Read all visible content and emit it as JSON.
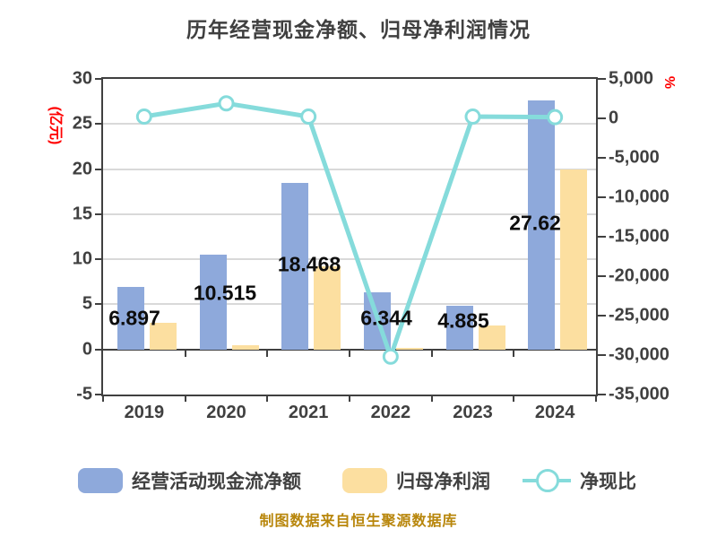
{
  "title": "历年经营现金净额、归母净利润情况",
  "caption": "制图数据来自恒生聚源数据库",
  "colors": {
    "bar_cash": "#8EA9DB",
    "bar_profit": "#FCDFA0",
    "line_ratio": "#85DBDB",
    "axis_unit_red": "#FF0000",
    "text": "#404040",
    "grid": "#D9D9D9",
    "caption": "#B8860B"
  },
  "axes": {
    "left": {
      "unit": "(亿元)",
      "tick_labels": [
        "30",
        "25",
        "20",
        "15",
        "10",
        "5",
        "0",
        "-5"
      ],
      "tick_values": [
        30,
        25,
        20,
        15,
        10,
        5,
        0,
        -5
      ],
      "range": [
        -5,
        30
      ]
    },
    "right": {
      "unit": "%",
      "tick_labels": [
        "5,000",
        "0",
        "-5,000",
        "-10,000",
        "-15,000",
        "-20,000",
        "-25,000",
        "-30,000",
        "-35,000"
      ],
      "tick_values": [
        5000,
        0,
        -5000,
        -10000,
        -15000,
        -20000,
        -25000,
        -30000,
        -35000
      ],
      "range": [
        -35000,
        5000
      ]
    }
  },
  "legend": {
    "items": [
      {
        "label": "经营活动现金流净额",
        "type": "bar",
        "color": "#8EA9DB"
      },
      {
        "label": "归母净利润",
        "type": "bar",
        "color": "#FCDFA0"
      },
      {
        "label": "净现比",
        "type": "line",
        "color": "#85DBDB"
      }
    ]
  },
  "chart_data": {
    "type": "bar",
    "title": "历年经营现金净额、归母净利润情况",
    "categories": [
      "2019",
      "2020",
      "2021",
      "2022",
      "2023",
      "2024"
    ],
    "left_axis": {
      "label": "(亿元)",
      "ylim": [
        -5,
        30
      ],
      "grid": true
    },
    "right_axis": {
      "label": "%",
      "ylim": [
        -35000,
        5000
      ]
    },
    "legend_position": "bottom",
    "series": [
      {
        "name": "经营活动现金流净额",
        "type": "bar",
        "axis": "left",
        "color": "#8EA9DB",
        "values": [
          6.897,
          10.515,
          18.468,
          6.344,
          4.885,
          27.62
        ],
        "value_labels": [
          "6.897",
          "10.515",
          "18.468",
          "6.344",
          "4.885",
          "27.62"
        ]
      },
      {
        "name": "归母净利润",
        "type": "bar",
        "axis": "left",
        "color": "#FCDFA0",
        "values": [
          3.0,
          0.5,
          9.2,
          0.15,
          2.7,
          20.0
        ]
      },
      {
        "name": "净现比",
        "type": "line",
        "axis": "right",
        "color": "#85DBDB",
        "marker": "circle-white",
        "values": [
          230,
          1900,
          230,
          -30200,
          230,
          150
        ]
      }
    ]
  }
}
